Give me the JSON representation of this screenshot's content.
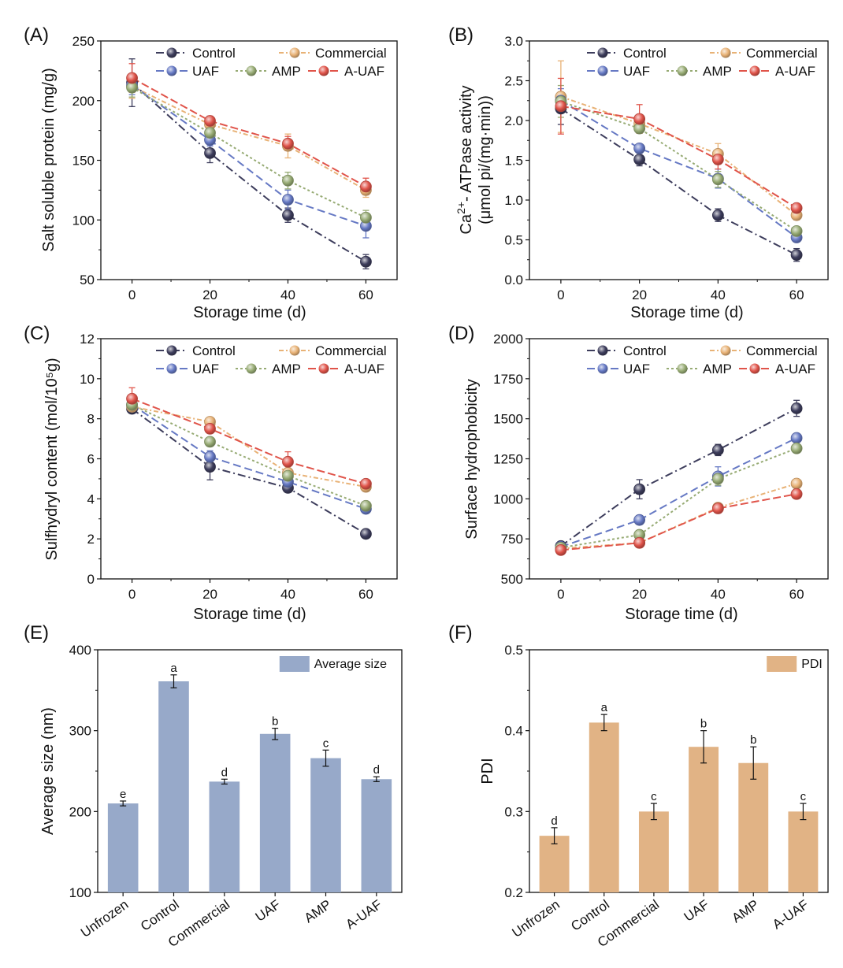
{
  "colors": {
    "Control": "#3d3d5c",
    "Commercial": "#e8b276",
    "UAF": "#6679c4",
    "AMP": "#97ab74",
    "A-UAF": "#e0544a",
    "bar_E": "#97a9c9",
    "bar_F": "#e1b385"
  },
  "chart_data": [
    {
      "panel": "(A)",
      "type": "line",
      "xlabel": "Storage time (d)",
      "ylabel": "Salt soluble protein (mg/g)",
      "ylim": [
        50,
        250
      ],
      "yticks": [
        50,
        100,
        150,
        200,
        250
      ],
      "xlim": [
        -8,
        68
      ],
      "x": [
        0,
        20,
        40,
        60
      ],
      "legend": "top-right",
      "series": [
        {
          "name": "Control",
          "values": [
            215,
            156,
            104,
            65
          ],
          "errors": [
            20,
            8,
            6,
            6
          ]
        },
        {
          "name": "Commercial",
          "values": [
            212,
            180,
            162,
            125
          ],
          "errors": [
            10,
            5,
            10,
            6
          ]
        },
        {
          "name": "UAF",
          "values": [
            213,
            167,
            117,
            95
          ],
          "errors": [
            8,
            5,
            8,
            10
          ]
        },
        {
          "name": "AMP",
          "values": [
            211,
            173,
            133,
            102
          ],
          "errors": [
            8,
            5,
            7,
            6
          ]
        },
        {
          "name": "A-UAF",
          "values": [
            219,
            183,
            164,
            128
          ],
          "errors": [
            12,
            4,
            6,
            7
          ]
        }
      ]
    },
    {
      "panel": "(B)",
      "type": "line",
      "xlabel": "Storage time (d)",
      "ylabel_lines": [
        "Ca2+- ATPase activity",
        "(μmol pi/(mg·min))"
      ],
      "ylim": [
        0,
        3.0
      ],
      "yticks": [
        "0.0",
        "0.5",
        "1.0",
        "1.5",
        "2.0",
        "2.5",
        "3.0"
      ],
      "xlim": [
        -8,
        68
      ],
      "x": [
        0,
        20,
        40,
        60
      ],
      "legend": "top-right",
      "series": [
        {
          "name": "Control",
          "values": [
            2.15,
            1.51,
            0.81,
            0.31
          ],
          "errors": [
            0.2,
            0.08,
            0.08,
            0.08
          ]
        },
        {
          "name": "Commercial",
          "values": [
            2.3,
            1.96,
            1.58,
            0.81
          ],
          "errors": [
            0.45,
            0.08,
            0.13,
            0.06
          ]
        },
        {
          "name": "UAF",
          "values": [
            2.25,
            1.65,
            1.27,
            0.53
          ],
          "errors": [
            0.15,
            0.05,
            0.12,
            0.05
          ]
        },
        {
          "name": "AMP",
          "values": [
            2.24,
            1.9,
            1.26,
            0.61
          ],
          "errors": [
            0.2,
            0.06,
            0.1,
            0.05
          ]
        },
        {
          "name": "A-UAF",
          "values": [
            2.18,
            2.02,
            1.51,
            0.9
          ],
          "errors": [
            0.35,
            0.18,
            0.12,
            0.05
          ]
        }
      ]
    },
    {
      "panel": "(C)",
      "type": "line",
      "xlabel": "Storage time (d)",
      "ylabel": "Sulfhydryl content (mol/10⁵g)",
      "ylim": [
        0,
        12
      ],
      "yticks": [
        0,
        2,
        4,
        6,
        8,
        10,
        12
      ],
      "xlim": [
        -8,
        68
      ],
      "x": [
        0,
        20,
        40,
        60
      ],
      "legend": "top-right",
      "series": [
        {
          "name": "Control",
          "values": [
            8.5,
            5.6,
            4.55,
            2.25
          ],
          "errors": [
            0.2,
            0.65,
            0.2,
            0.1
          ]
        },
        {
          "name": "Commercial",
          "values": [
            8.6,
            7.85,
            5.3,
            4.6
          ],
          "errors": [
            0.3,
            0.15,
            0.3,
            0.15
          ]
        },
        {
          "name": "UAF",
          "values": [
            8.7,
            6.1,
            4.85,
            3.5
          ],
          "errors": [
            0.3,
            0.3,
            0.2,
            0.15
          ]
        },
        {
          "name": "AMP",
          "values": [
            8.7,
            6.85,
            5.15,
            3.65
          ],
          "errors": [
            0.3,
            0.2,
            0.3,
            0.15
          ]
        },
        {
          "name": "A-UAF",
          "values": [
            9.0,
            7.5,
            5.85,
            4.75
          ],
          "errors": [
            0.55,
            0.2,
            0.5,
            0.2
          ]
        }
      ]
    },
    {
      "panel": "(D)",
      "type": "line",
      "xlabel": "Storage time (d)",
      "ylabel": "Surface hydrophobicity",
      "ylim": [
        500,
        2000
      ],
      "yticks": [
        500,
        750,
        1000,
        1250,
        1500,
        1750,
        2000
      ],
      "xlim": [
        -8,
        68
      ],
      "x": [
        0,
        20,
        40,
        60
      ],
      "legend": "top-right",
      "series": [
        {
          "name": "Control",
          "values": [
            705,
            1060,
            1305,
            1565
          ],
          "errors": [
            20,
            60,
            35,
            50
          ]
        },
        {
          "name": "Commercial",
          "values": [
            690,
            725,
            945,
            1095
          ],
          "errors": [
            15,
            20,
            20,
            25
          ]
        },
        {
          "name": "UAF",
          "values": [
            700,
            868,
            1140,
            1380
          ],
          "errors": [
            15,
            20,
            60,
            20
          ]
        },
        {
          "name": "AMP",
          "values": [
            695,
            775,
            1125,
            1315
          ],
          "errors": [
            15,
            20,
            40,
            20
          ]
        },
        {
          "name": "A-UAF",
          "values": [
            680,
            725,
            940,
            1030
          ],
          "errors": [
            15,
            15,
            20,
            15
          ]
        }
      ]
    },
    {
      "panel": "(E)",
      "type": "bar",
      "ylabel": "Average size (nm)",
      "legend_label": "Average size",
      "ylim": [
        100,
        400
      ],
      "yticks": [
        100,
        200,
        300,
        400
      ],
      "categories": [
        "Unfrozen",
        "Control",
        "Commercial",
        "UAF",
        "AMP",
        "A-UAF"
      ],
      "values": [
        210,
        361,
        237,
        296,
        266,
        240
      ],
      "errors": [
        3,
        8,
        3,
        7,
        10,
        3
      ],
      "letters": [
        "e",
        "a",
        "d",
        "b",
        "c",
        "d"
      ]
    },
    {
      "panel": "(F)",
      "type": "bar",
      "ylabel": "PDI",
      "legend_label": "PDI",
      "ylim": [
        0.2,
        0.5
      ],
      "yticks": [
        "0.2",
        "0.3",
        "0.4",
        "0.5"
      ],
      "categories": [
        "Unfrozen",
        "Control",
        "Commercial",
        "UAF",
        "AMP",
        "A-UAF"
      ],
      "values": [
        0.27,
        0.41,
        0.3,
        0.38,
        0.36,
        0.3
      ],
      "errors": [
        0.01,
        0.01,
        0.01,
        0.02,
        0.02,
        0.01
      ],
      "letters": [
        "d",
        "a",
        "c",
        "b",
        "b",
        "c"
      ]
    }
  ]
}
